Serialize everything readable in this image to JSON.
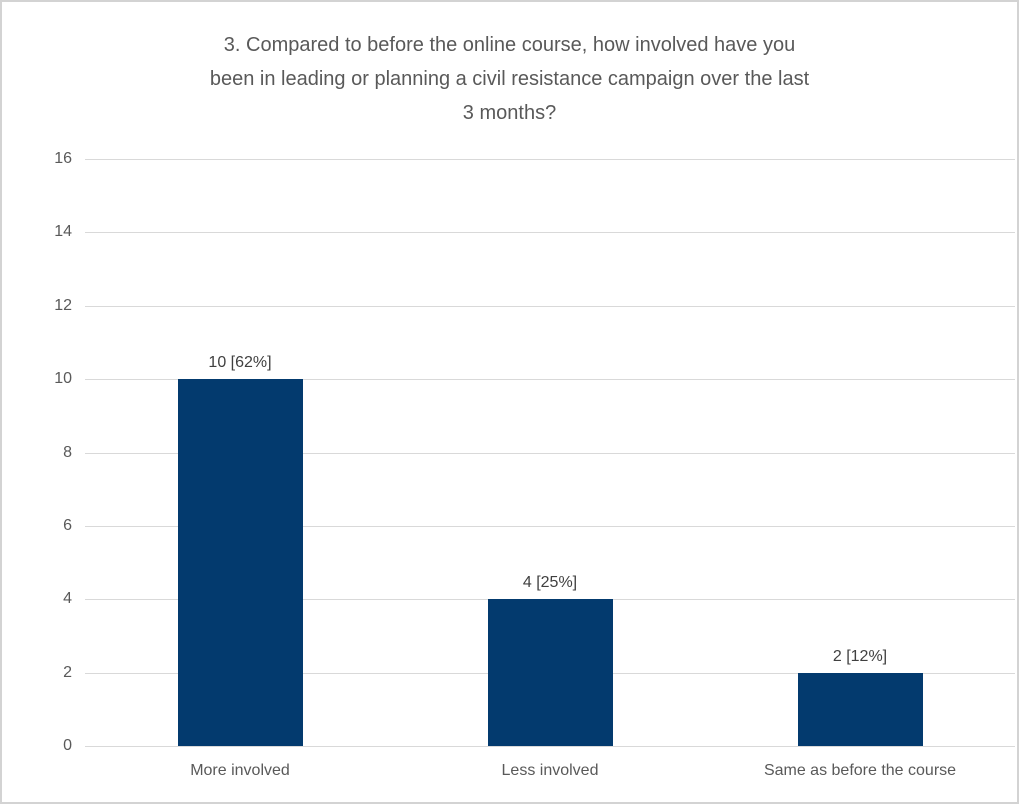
{
  "chart_data": {
    "type": "bar",
    "title": "3. Compared to before the online course, how involved have you been in leading or planning a civil resistance campaign over the last 3 months?",
    "title_lines": [
      "3. Compared to before the online course, how involved have you",
      "been in leading or planning a civil resistance campaign over the last",
      "3 months?"
    ],
    "categories": [
      "More involved",
      "Less involved",
      "Same as before the course"
    ],
    "values": [
      10,
      4,
      2
    ],
    "data_labels": [
      "10 [62%]",
      "4 [25%]",
      "2 [12%]"
    ],
    "xlabel": "",
    "ylabel": "",
    "ylim": [
      0,
      16
    ],
    "yticks": [
      0,
      2,
      4,
      6,
      8,
      10,
      12,
      14,
      16
    ],
    "grid": true,
    "legend": "none",
    "colors": {
      "bar": "#033a6e",
      "title_text": "#595959",
      "axis_text": "#595959",
      "data_label_text": "#404040",
      "gridline": "#d9d9d9",
      "frame_border": "#d3d3d3",
      "background": "#ffffff"
    }
  }
}
